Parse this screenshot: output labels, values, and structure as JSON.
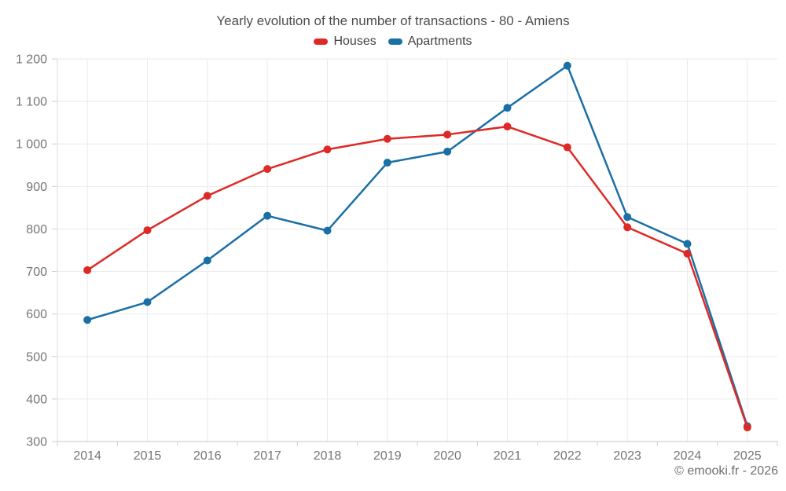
{
  "title": "Yearly evolution of the number of transactions - 80 - Amiens",
  "footer": "© emooki.fr - 2026",
  "legend": {
    "items": [
      {
        "label": "Houses",
        "color": "#de2a26"
      },
      {
        "label": "Apartments",
        "color": "#1a6fa5"
      }
    ]
  },
  "chart_data": {
    "type": "line",
    "title": "Yearly evolution of the number of transactions - 80 - Amiens",
    "categories": [
      "2014",
      "2015",
      "2016",
      "2017",
      "2018",
      "2019",
      "2020",
      "2021",
      "2022",
      "2023",
      "2024",
      "2025"
    ],
    "series": [
      {
        "name": "Houses",
        "color": "#de2a26",
        "values": [
          703,
          797,
          878,
          941,
          987,
          1012,
          1022,
          1041,
          992,
          804,
          742,
          333
        ]
      },
      {
        "name": "Apartments",
        "color": "#1a6fa5",
        "values": [
          586,
          628,
          726,
          831,
          796,
          956,
          982,
          1085,
          1184,
          828,
          765,
          336
        ]
      }
    ],
    "xlabel": "",
    "ylabel": "",
    "ylim": [
      300,
      1200
    ],
    "ytick_step": 100,
    "ytick_labels": [
      "300",
      "400",
      "500",
      "600",
      "700",
      "800",
      "900",
      "1 000",
      "1 100",
      "1 200"
    ],
    "grid": true,
    "legend_position": "top",
    "marker_radius": 5,
    "line_width": 2.5
  },
  "colors": {
    "background": "#ffffff",
    "title_text": "#4e4e4e",
    "legend_text": "#424242",
    "axis_text": "#757575",
    "gridline": "#ebebeb",
    "axis_line_left": "#dcdcdc",
    "axis_line_bottom": "#c6c6c6",
    "tick": "#cfcfcf",
    "houses": "#de2a26",
    "apartments": "#1a6fa5"
  }
}
